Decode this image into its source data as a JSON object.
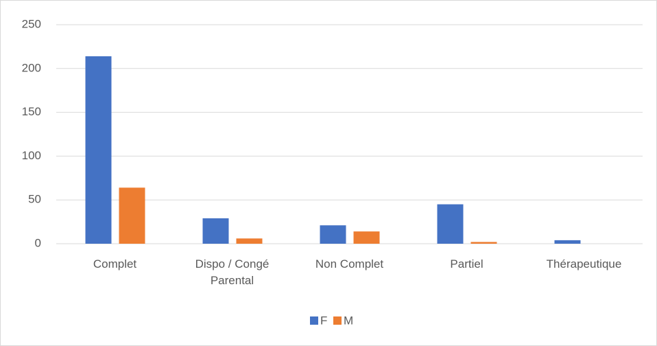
{
  "chart_data": {
    "type": "bar",
    "categories": [
      "Complet",
      "Dispo / Congé Parental",
      "Non Complet",
      "Partiel",
      "Thérapeutique"
    ],
    "series": [
      {
        "name": "F",
        "color": "#4472c4",
        "values": [
          214,
          29,
          21,
          45,
          4
        ]
      },
      {
        "name": "M",
        "color": "#ed7d31",
        "values": [
          64,
          6,
          14,
          2,
          0
        ]
      }
    ],
    "ylim": [
      0,
      250
    ],
    "yticks": [
      0,
      50,
      100,
      150,
      200,
      250
    ],
    "grid": true,
    "legend": "bottom"
  }
}
